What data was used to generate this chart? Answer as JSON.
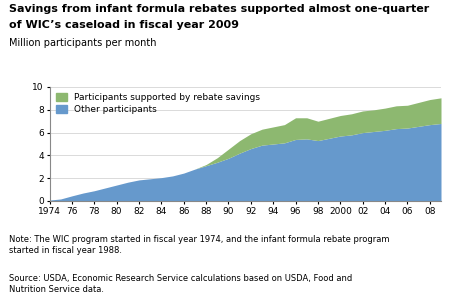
{
  "title_line1": "Savings from infant formula rebates supported almost one-quarter",
  "title_line2": "of WIC’s caseload in fiscal year 2009",
  "ylabel": "Million participants per month",
  "ylim": [
    0,
    10
  ],
  "yticks": [
    0,
    2,
    4,
    6,
    8,
    10
  ],
  "xtick_labels": [
    "1974",
    "76",
    "78",
    "80",
    "82",
    "84",
    "86",
    "88",
    "90",
    "92",
    "94",
    "96",
    "98",
    "2000",
    "02",
    "04",
    "06",
    "08"
  ],
  "xtick_positions": [
    1974,
    1976,
    1978,
    1980,
    1982,
    1984,
    1986,
    1988,
    1990,
    1992,
    1994,
    1996,
    1998,
    2000,
    2002,
    2004,
    2006,
    2008
  ],
  "note": "Note: The WIC program started in fiscal year 1974, and the infant formula rebate program\nstarted in fiscal year 1988.",
  "source": "Source: USDA, Economic Research Service calculations based on USDA, Food and\nNutrition Service data.",
  "legend_rebate": "Participants supported by rebate savings",
  "legend_other": "Other participants",
  "color_rebate": "#8db870",
  "color_other": "#6699cc",
  "years": [
    1974,
    1975,
    1976,
    1977,
    1978,
    1979,
    1980,
    1981,
    1982,
    1983,
    1984,
    1985,
    1986,
    1987,
    1988,
    1989,
    1990,
    1991,
    1992,
    1993,
    1994,
    1995,
    1996,
    1997,
    1998,
    1999,
    2000,
    2001,
    2002,
    2003,
    2004,
    2005,
    2006,
    2007,
    2008,
    2009
  ],
  "other_participants": [
    0.08,
    0.18,
    0.45,
    0.7,
    0.9,
    1.15,
    1.4,
    1.65,
    1.85,
    1.95,
    2.05,
    2.2,
    2.45,
    2.8,
    3.1,
    3.4,
    3.75,
    4.2,
    4.6,
    4.9,
    5.0,
    5.1,
    5.4,
    5.45,
    5.3,
    5.5,
    5.7,
    5.8,
    6.0,
    6.1,
    6.2,
    6.35,
    6.4,
    6.55,
    6.7,
    6.8
  ],
  "rebate_participants": [
    0,
    0,
    0,
    0,
    0,
    0,
    0,
    0,
    0,
    0,
    0,
    0,
    0,
    0,
    0.1,
    0.4,
    0.8,
    1.1,
    1.3,
    1.4,
    1.5,
    1.6,
    1.9,
    1.85,
    1.7,
    1.75,
    1.8,
    1.85,
    1.9,
    1.9,
    1.95,
    2.0,
    2.0,
    2.1,
    2.2,
    2.25
  ]
}
